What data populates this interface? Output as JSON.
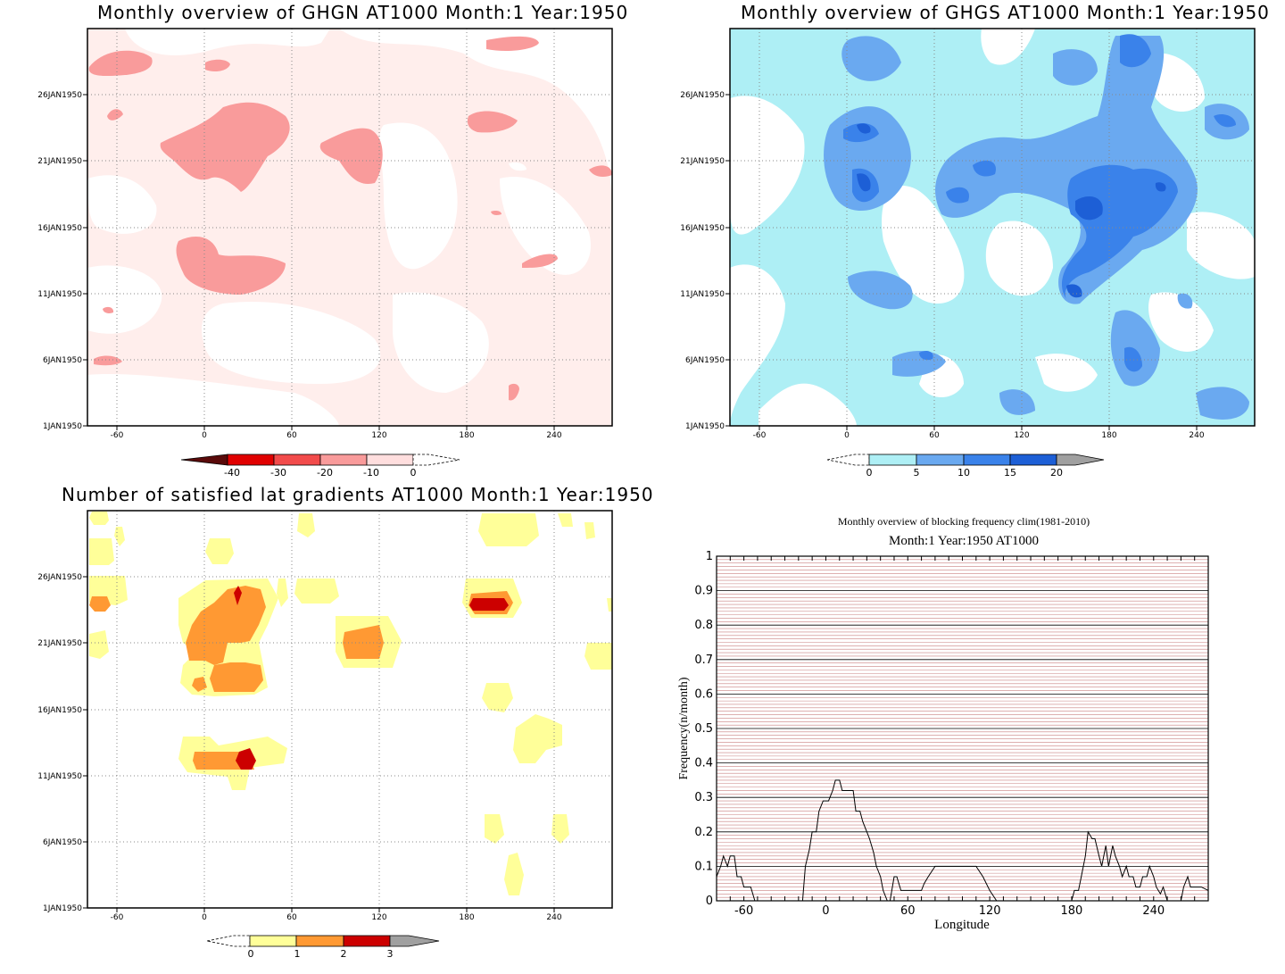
{
  "panels": {
    "ghgn": {
      "title": "Monthly overview of GHGN AT1000 Month:1 Year:1950",
      "y_ticks": [
        "1JAN1950",
        "6JAN1950",
        "11JAN1950",
        "16JAN1950",
        "21JAN1950",
        "26JAN1950"
      ],
      "x_ticks": [
        "-60",
        "0",
        "60",
        "120",
        "180",
        "240"
      ],
      "colorbar": {
        "labels": [
          "-40",
          "-30",
          "-20",
          "-10",
          "0"
        ],
        "colors": [
          "#5a0a0a",
          "#e00000",
          "#f24b4b",
          "#f99b9b",
          "#ffdede",
          "#fff0ee"
        ]
      }
    },
    "ghgs": {
      "title": "Monthly overview of GHGS AT1000 Month:1 Year:1950",
      "y_ticks": [
        "1JAN1950",
        "6JAN1950",
        "11JAN1950",
        "16JAN1950",
        "21JAN1950",
        "26JAN1950"
      ],
      "x_ticks": [
        "-60",
        "0",
        "60",
        "120",
        "180",
        "240"
      ],
      "colorbar": {
        "labels": [
          "0",
          "5",
          "10",
          "15",
          "20"
        ],
        "colors": [
          "#ffffff",
          "#aeeff5",
          "#6aa9f0",
          "#3a82ea",
          "#1d5fd6",
          "#a0a0a0"
        ]
      }
    },
    "gradients": {
      "title": "Number of satisfied lat gradients AT1000 Month:1 Year:1950",
      "y_ticks": [
        "1JAN1950",
        "6JAN1950",
        "11JAN1950",
        "16JAN1950",
        "21JAN1950",
        "26JAN1950"
      ],
      "x_ticks": [
        "-60",
        "0",
        "60",
        "120",
        "180",
        "240"
      ],
      "colorbar": {
        "labels": [
          "0",
          "1",
          "2",
          "3"
        ],
        "colors": [
          "#ffffff",
          "#ffff99",
          "#ff9933",
          "#cc0000",
          "#a0a0a0"
        ]
      }
    },
    "blocking": {
      "title": "Monthly overview of blocking frequency clim(1981-2010)",
      "subtitle": "Month:1 Year:1950  AT1000",
      "ylabel": "Frequency(n/month)",
      "xlabel": "Longitude",
      "y_ticks": [
        "0",
        "0.1",
        "0.2",
        "0.3",
        "0.4",
        "0.5",
        "0.6",
        "0.7",
        "0.8",
        "0.9",
        "1"
      ],
      "x_ticks": [
        "-60",
        "0",
        "60",
        "120",
        "180",
        "240"
      ]
    }
  },
  "chart_data": [
    {
      "type": "heatmap",
      "title": "Monthly overview of GHGN AT1000 Month:1 Year:1950",
      "xlim": [
        -90,
        270
      ],
      "ylim": [
        "1JAN1950",
        "31JAN1950"
      ],
      "color_levels": [
        -40,
        -30,
        -20,
        -10,
        0
      ],
      "grid": true
    },
    {
      "type": "heatmap",
      "title": "Monthly overview of GHGS AT1000 Month:1 Year:1950",
      "xlim": [
        -90,
        270
      ],
      "ylim": [
        "1JAN1950",
        "31JAN1950"
      ],
      "color_levels": [
        0,
        5,
        10,
        15,
        20
      ],
      "grid": true
    },
    {
      "type": "heatmap",
      "title": "Number of satisfied lat gradients AT1000 Month:1 Year:1950",
      "xlim": [
        -90,
        270
      ],
      "ylim": [
        "1JAN1950",
        "31JAN1950"
      ],
      "color_levels": [
        0,
        1,
        2,
        3
      ],
      "grid": true
    },
    {
      "type": "line",
      "title": "Monthly overview of blocking frequency clim(1981-2010)",
      "xlabel": "Longitude",
      "ylabel": "Frequency(n/month)",
      "xlim": [
        -80,
        280
      ],
      "ylim": [
        0,
        1
      ],
      "series": [
        {
          "x": [
            -80,
            -77,
            -75,
            -72,
            -70,
            -67,
            -65,
            -62,
            -60,
            -55,
            -52,
            -50,
            -45,
            -40,
            -35,
            -30,
            -25,
            -20,
            -17,
            -15,
            -12,
            -10,
            -7,
            -5,
            -2,
            0,
            2,
            5,
            7,
            10,
            12,
            15,
            17,
            20,
            22,
            25,
            27,
            30,
            32,
            35,
            37,
            40,
            42,
            45,
            47,
            50,
            52,
            55,
            57,
            60,
            62,
            65,
            67,
            70,
            72,
            75,
            80,
            85,
            90,
            95,
            100,
            105,
            110,
            115,
            120,
            125,
            130,
            132,
            135,
            140,
            150,
            160,
            170,
            180,
            182,
            185,
            187,
            190,
            192,
            195,
            197,
            200,
            202,
            205,
            207,
            210,
            212,
            215,
            217,
            220,
            222,
            225,
            227,
            230,
            232,
            235,
            237,
            240,
            242,
            245,
            247,
            250,
            252,
            255,
            257,
            260,
            262,
            265,
            267,
            270,
            275,
            280
          ],
          "values": [
            0.07,
            0.1,
            0.13,
            0.1,
            0.13,
            0.13,
            0.07,
            0.07,
            0.04,
            0.04,
            0.0,
            0.0,
            0.0,
            0.0,
            0.0,
            0.0,
            0.0,
            0.0,
            0.0,
            0.1,
            0.15,
            0.2,
            0.2,
            0.26,
            0.29,
            0.29,
            0.29,
            0.32,
            0.35,
            0.35,
            0.32,
            0.32,
            0.32,
            0.32,
            0.26,
            0.26,
            0.23,
            0.2,
            0.18,
            0.14,
            0.1,
            0.07,
            0.03,
            0.0,
            0.0,
            0.07,
            0.07,
            0.03,
            0.03,
            0.03,
            0.03,
            0.03,
            0.03,
            0.03,
            0.05,
            0.07,
            0.1,
            0.1,
            0.1,
            0.1,
            0.1,
            0.1,
            0.1,
            0.07,
            0.03,
            0.0,
            0.0,
            0.0,
            0.0,
            0.0,
            0.0,
            0.0,
            0.0,
            0.0,
            0.03,
            0.03,
            0.07,
            0.13,
            0.2,
            0.18,
            0.18,
            0.13,
            0.1,
            0.16,
            0.1,
            0.16,
            0.13,
            0.1,
            0.07,
            0.1,
            0.07,
            0.07,
            0.04,
            0.04,
            0.07,
            0.07,
            0.1,
            0.07,
            0.04,
            0.02,
            0.04,
            0.0,
            0.0,
            0.0,
            0.0,
            0.0,
            0.04,
            0.07,
            0.04,
            0.04,
            0.04,
            0.03
          ]
        }
      ]
    }
  ]
}
